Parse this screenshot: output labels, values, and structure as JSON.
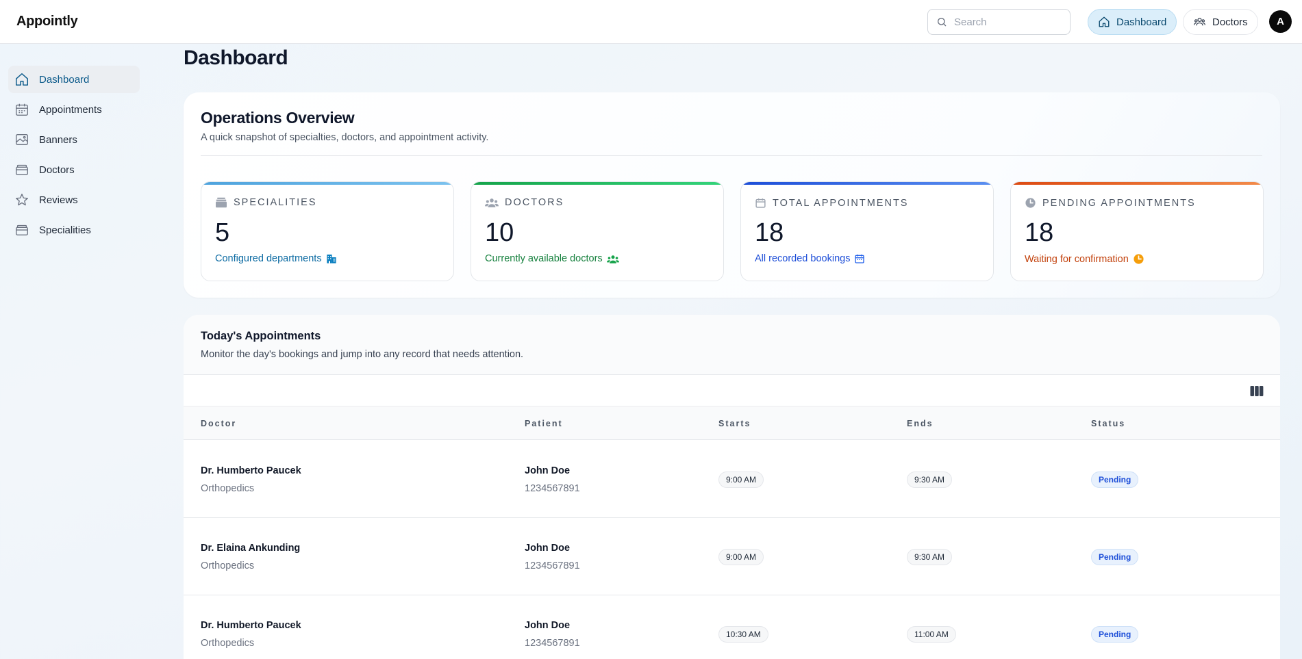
{
  "app": {
    "brand": "Appointly"
  },
  "header": {
    "search_placeholder": "Search",
    "nav": [
      {
        "label": "Dashboard",
        "icon": "home-icon",
        "active": true
      },
      {
        "label": "Doctors",
        "icon": "users-icon",
        "active": false
      }
    ],
    "avatar_initial": "A"
  },
  "sidebar": {
    "items": [
      {
        "label": "Dashboard",
        "icon": "home-icon",
        "active": true
      },
      {
        "label": "Appointments",
        "icon": "calendar-icon",
        "active": false
      },
      {
        "label": "Banners",
        "icon": "image-icon",
        "active": false
      },
      {
        "label": "Doctors",
        "icon": "box-icon",
        "active": false
      },
      {
        "label": "Reviews",
        "icon": "star-icon",
        "active": false
      },
      {
        "label": "Specialities",
        "icon": "box-icon",
        "active": false
      }
    ]
  },
  "page": {
    "title": "Dashboard"
  },
  "overview": {
    "title": "Operations Overview",
    "subtitle": "A quick snapshot of specialties, doctors, and appointment activity.",
    "stats": [
      {
        "label": "Specialities",
        "value": "5",
        "note": "Configured departments",
        "accent": "#5aa9e6",
        "note_color": "#0b6aa2",
        "icon": "stack-icon",
        "note_icon": "building-icon"
      },
      {
        "label": "Doctors",
        "value": "10",
        "note": "Currently available doctors",
        "accent": "#16a34a",
        "note_color": "#15803d",
        "icon": "users-icon",
        "note_icon": "users-icon"
      },
      {
        "label": "Total Appointments",
        "value": "18",
        "note": "All recorded bookings",
        "accent": "#2563eb",
        "note_color": "#1d4ed8",
        "icon": "calendar-icon",
        "note_icon": "calendar-icon"
      },
      {
        "label": "Pending Appointments",
        "value": "18",
        "note": "Waiting for confirmation",
        "accent": "#ea580c",
        "note_color": "#c2410c",
        "icon": "clock-icon",
        "note_icon": "clock-icon"
      }
    ]
  },
  "appointments": {
    "title": "Today's Appointments",
    "subtitle": "Monitor the day's bookings and jump into any record that needs attention.",
    "columns": [
      "Doctor",
      "Patient",
      "Starts",
      "Ends",
      "Status"
    ],
    "rows": [
      {
        "doctor": "Dr. Humberto Paucek",
        "speciality": "Orthopedics",
        "patient": "John Doe",
        "phone": "1234567891",
        "starts": "9:00 AM",
        "ends": "9:30 AM",
        "status": "Pending"
      },
      {
        "doctor": "Dr. Elaina Ankunding",
        "speciality": "Orthopedics",
        "patient": "John Doe",
        "phone": "1234567891",
        "starts": "9:00 AM",
        "ends": "9:30 AM",
        "status": "Pending"
      },
      {
        "doctor": "Dr. Humberto Paucek",
        "speciality": "Orthopedics",
        "patient": "John Doe",
        "phone": "1234567891",
        "starts": "10:30 AM",
        "ends": "11:00 AM",
        "status": "Pending"
      }
    ]
  }
}
